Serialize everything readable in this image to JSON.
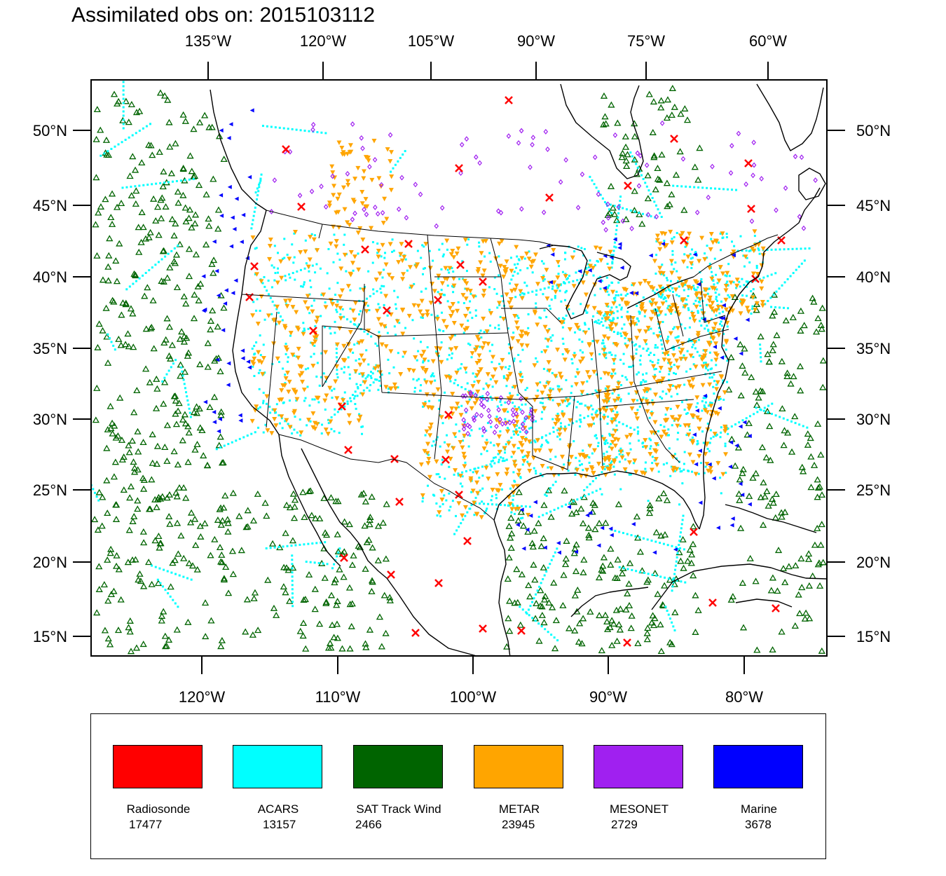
{
  "title": "Assimilated obs on: 2015103112",
  "map": {
    "projection": "Lambert conformal",
    "top_lon_labels": [
      "135°W",
      "120°W",
      "105°W",
      "90°W",
      "75°W",
      "60°W"
    ],
    "bottom_lon_labels": [
      "120°W",
      "110°W",
      "100°W",
      "90°W",
      "80°W"
    ],
    "lat_labels": [
      "50°N",
      "45°N",
      "40°N",
      "35°N",
      "30°N",
      "25°N",
      "20°N",
      "15°N"
    ]
  },
  "legend": [
    {
      "name": "Radiosonde",
      "count": "17477",
      "color": "#ff0000",
      "icon": "x-marker-icon"
    },
    {
      "name": "ACARS",
      "count": "13157",
      "color": "#00ffff",
      "icon": "square-marker-icon"
    },
    {
      "name": "SAT Track Wind",
      "count": "2466",
      "color": "#006400",
      "icon": "triangle-up-icon"
    },
    {
      "name": "METAR",
      "count": "23945",
      "color": "#ffa500",
      "icon": "triangle-down-icon"
    },
    {
      "name": "MESONET",
      "count": "2729",
      "color": "#a020f0",
      "icon": "diamond-marker-icon"
    },
    {
      "name": "Marine",
      "count": "3678",
      "color": "#0000ff",
      "icon": "triangle-left-icon"
    }
  ]
}
